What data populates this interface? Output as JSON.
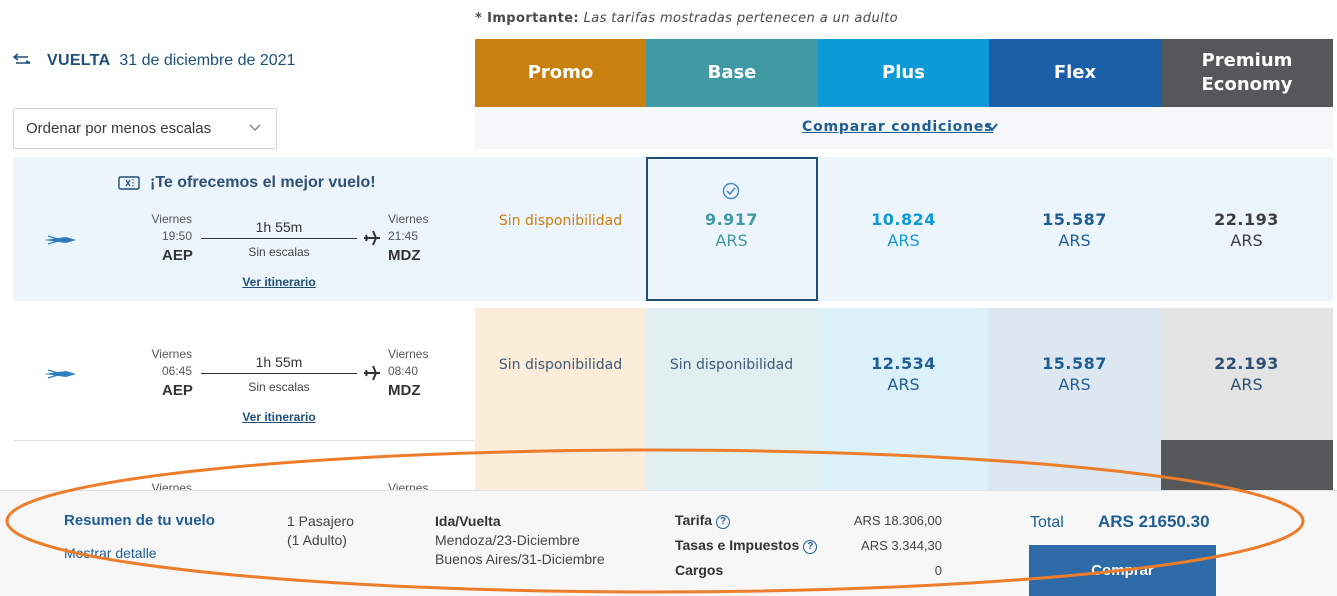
{
  "note": {
    "bold": "* Importante:",
    "italic": "Las tarifas mostradas pertenecen a un adulto"
  },
  "header": {
    "label": "VUELTA",
    "date": "31 de diciembre de 2021"
  },
  "sort": {
    "value": "Ordenar por menos escalas"
  },
  "fares": [
    {
      "name": "Promo",
      "color": "#c8800f"
    },
    {
      "name": "Base",
      "color": "#4199a4"
    },
    {
      "name": "Plus",
      "color": "#0e9ad6"
    },
    {
      "name": "Flex",
      "color": "#1a5fa8"
    },
    {
      "name": "Premium Economy",
      "color": "#565759"
    }
  ],
  "compare_label": "Comparar condiciones",
  "best_offer": "¡Te ofrecemos el mejor vuelo!",
  "flights": [
    {
      "dep_day": "Viernes",
      "dep_time": "19:50",
      "dep_airport": "AEP",
      "arr_day": "Viernes",
      "arr_time": "21:45",
      "arr_airport": "MDZ",
      "duration": "1h 55m",
      "stops": "Sin escalas",
      "itinerary": "Ver itinerario",
      "prices": [
        {
          "sin": "Sin disponibilidad"
        },
        {
          "amount": "9.917",
          "currency": "ARS",
          "selected": true
        },
        {
          "amount": "10.824",
          "currency": "ARS"
        },
        {
          "amount": "15.587",
          "currency": "ARS"
        },
        {
          "amount": "22.193",
          "currency": "ARS"
        }
      ]
    },
    {
      "dep_day": "Viernes",
      "dep_time": "06:45",
      "dep_airport": "AEP",
      "arr_day": "Viernes",
      "arr_time": "08:40",
      "arr_airport": "MDZ",
      "duration": "1h 55m",
      "stops": "Sin escalas",
      "itinerary": "Ver itinerario",
      "prices": [
        {
          "sin": "Sin disponibilidad"
        },
        {
          "sin": "Sin disponibilidad"
        },
        {
          "amount": "12.534",
          "currency": "ARS"
        },
        {
          "amount": "15.587",
          "currency": "ARS"
        },
        {
          "amount": "22.193",
          "currency": "ARS"
        }
      ]
    },
    {
      "dep_day": "Viernes",
      "arr_day": "Viernes"
    }
  ],
  "summary": {
    "title": "Resumen de tu vuelo",
    "detail": "Mostrar detalle",
    "pax_line1": "1 Pasajero",
    "pax_line2": "(1 Adulto)",
    "trip_type": "Ida/Vuelta",
    "leg1": "Mendoza/23-Diciembre",
    "leg2": "Buenos Aires/31-Diciembre",
    "tarifa_label": "Tarifa",
    "tarifa_value": "ARS 18.306,00",
    "tasas_label": "Tasas e Impuestos",
    "tasas_value": "ARS 3.344,30",
    "cargos_label": "Cargos",
    "cargos_value": "0",
    "total_label": "Total",
    "total_value": "ARS 21650.30",
    "buy_label": "Comprar"
  }
}
